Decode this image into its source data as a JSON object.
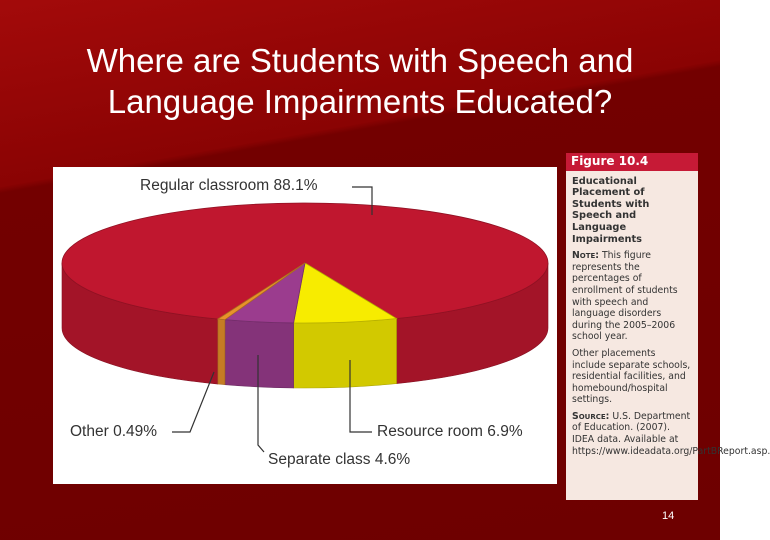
{
  "slide": {
    "title": "Where are Students with Speech and Language Impairments Educated?",
    "page_number": "14"
  },
  "chart_data": {
    "type": "pie3d",
    "categories": [
      "Regular classroom",
      "Resource room",
      "Separate class",
      "Other"
    ],
    "values": [
      88.1,
      6.9,
      4.6,
      0.49
    ],
    "value_labels": [
      "88.1%",
      "6.9%",
      "4.6%",
      "0.49%"
    ],
    "colors": [
      "#c0172f",
      "#f7ec00",
      "#9b3c8e",
      "#e8922a"
    ]
  },
  "figure": {
    "label": "Figure 10.4",
    "caption": "Educational Placement of Students with Speech and Language Impairments",
    "note_label": "Note:",
    "note": "This figure represents the percentages of enrollment of students with speech and language disorders during the 2005–2006 school year.",
    "other_note": "Other placements include separate schools, residential facilities, and homebound/hospital settings.",
    "source_label": "Source:",
    "source": "U.S. Department of Education. (2007). IDEA data. Available at https://www.ideadata.org/PartBReport.asp."
  }
}
